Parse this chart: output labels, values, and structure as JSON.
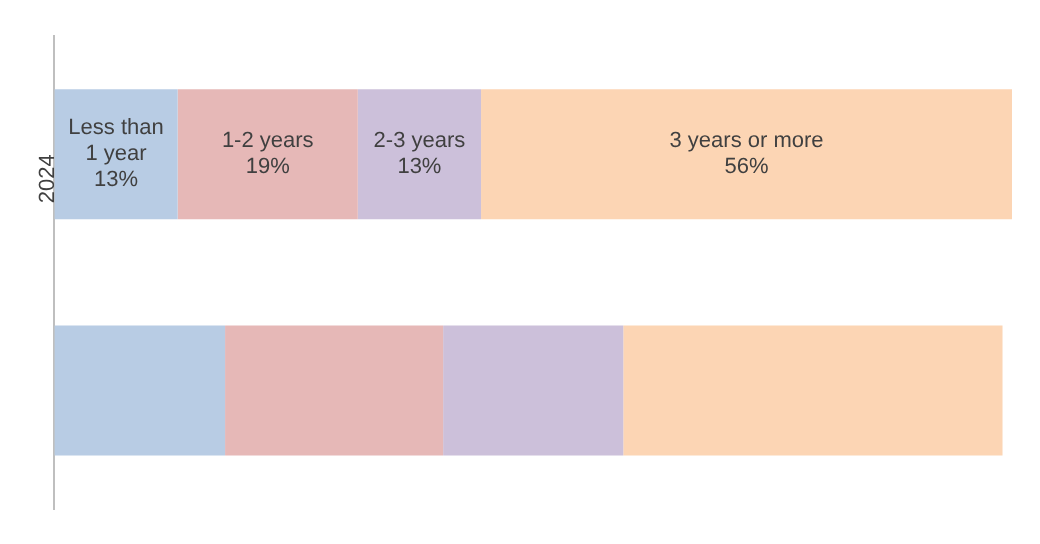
{
  "chart_data": {
    "type": "bar",
    "orientation": "horizontal",
    "stacked": true,
    "categories": [
      "2024",
      null
    ],
    "series": [
      {
        "name": "Less than 1 year",
        "color": "#b8cce4",
        "values": [
          13,
          18
        ],
        "value_labels": [
          "13%",
          null
        ]
      },
      {
        "name": "1-2 years",
        "color": "#e6b8b7",
        "values": [
          19,
          23
        ],
        "value_labels": [
          "19%",
          null
        ]
      },
      {
        "name": "2-3 years",
        "color": "#ccc0da",
        "values": [
          13,
          19
        ],
        "value_labels": [
          "13%",
          null
        ]
      },
      {
        "name": "3 years or more",
        "color": "#fcd5b4",
        "values": [
          56,
          40
        ],
        "value_labels": [
          "56%",
          null
        ]
      }
    ],
    "legend": false,
    "tick_labels": "y"
  }
}
